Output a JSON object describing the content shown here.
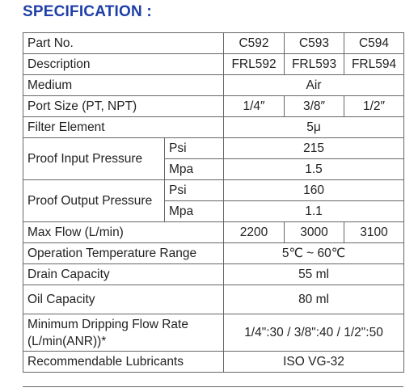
{
  "title": "SPECIFICATION :",
  "table": {
    "part_no": {
      "label": "Part No.",
      "values": [
        "C592",
        "C593",
        "C594"
      ]
    },
    "description": {
      "label": "Description",
      "values": [
        "FRL592",
        "FRL593",
        "FRL594"
      ]
    },
    "medium": {
      "label": "Medium",
      "value": "Air"
    },
    "port_size": {
      "label": "Port Size (PT, NPT)",
      "values": [
        "1/4″",
        "3/8″",
        "1/2″"
      ]
    },
    "filter_element": {
      "label": "Filter Element",
      "value": "5μ"
    },
    "proof_input": {
      "label": "Proof Input Pressure",
      "psi_label": "Psi",
      "psi_value": "215",
      "mpa_label": "Mpa",
      "mpa_value": "1.5"
    },
    "proof_output": {
      "label": "Proof Output Pressure",
      "psi_label": "Psi",
      "psi_value": "160",
      "mpa_label": "Mpa",
      "mpa_value": "1.1"
    },
    "max_flow": {
      "label": "Max Flow (L/min)",
      "values": [
        "2200",
        "3000",
        "3100"
      ]
    },
    "operation_temp": {
      "label": "Operation Temperature Range",
      "value": "5℃ ~ 60℃"
    },
    "drain_capacity": {
      "label": "Drain Capacity",
      "value": "55 ml"
    },
    "oil_capacity": {
      "label": "Oil Capacity",
      "value": "80 ml"
    },
    "dripping_flow": {
      "label_line1": "Minimum Dripping Flow Rate",
      "label_line2": "(L/min(ANR))*",
      "value": "1/4\":30 / 3/8\":40 / 1/2\":50"
    },
    "lubricants": {
      "label": "Recommendable Lubricants",
      "value": "ISO VG-32"
    }
  }
}
